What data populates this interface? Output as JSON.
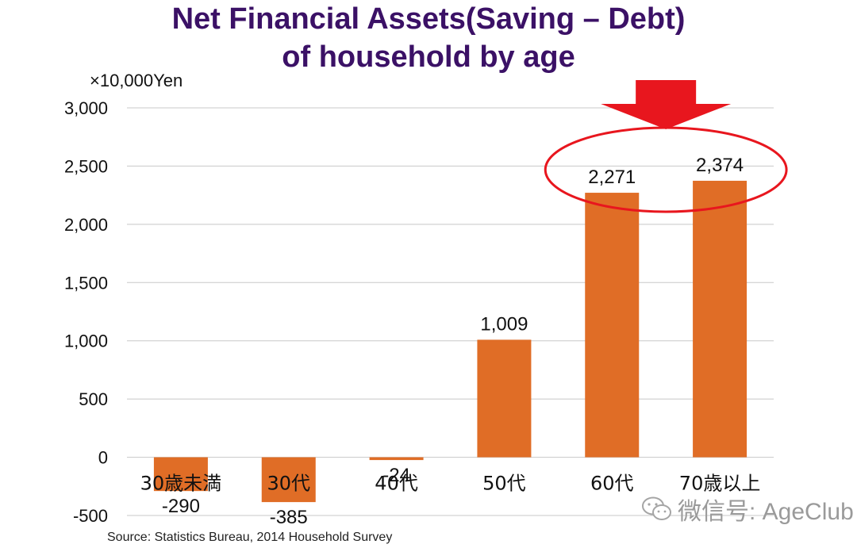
{
  "chart_data": {
    "type": "bar",
    "title_lines": [
      "Net Financial Assets(Saving – Debt)",
      "of household by age"
    ],
    "ylabel": "×10,000Yen",
    "categories": [
      "30歳未満",
      "30代",
      "40代",
      "50代",
      "60代",
      "70歳以上"
    ],
    "values": [
      -290,
      -385,
      -24,
      1009,
      2271,
      2374
    ],
    "value_labels": [
      "-290",
      "-385",
      "-24",
      "1,009",
      "2,271",
      "2,374"
    ],
    "ylim": [
      -500,
      3000
    ],
    "yticks": [
      -500,
      0,
      500,
      1000,
      1500,
      2000,
      2500,
      3000
    ],
    "ytick_labels": [
      "-500",
      "0",
      "500",
      "1,000",
      "1,500",
      "2,000",
      "2,500",
      "3,000"
    ],
    "grid": true,
    "highlight_categories": [
      "60代",
      "70歳以上"
    ],
    "source": "Source: Statistics Bureau, 2014 Household Survey"
  },
  "colors": {
    "bar": "#e06d26",
    "title": "#3b1166",
    "highlight": "#e8161e",
    "grid": "#c8c8c8"
  },
  "watermark": {
    "text": "微信号: AgeClub",
    "icon": "wechat-icon"
  }
}
